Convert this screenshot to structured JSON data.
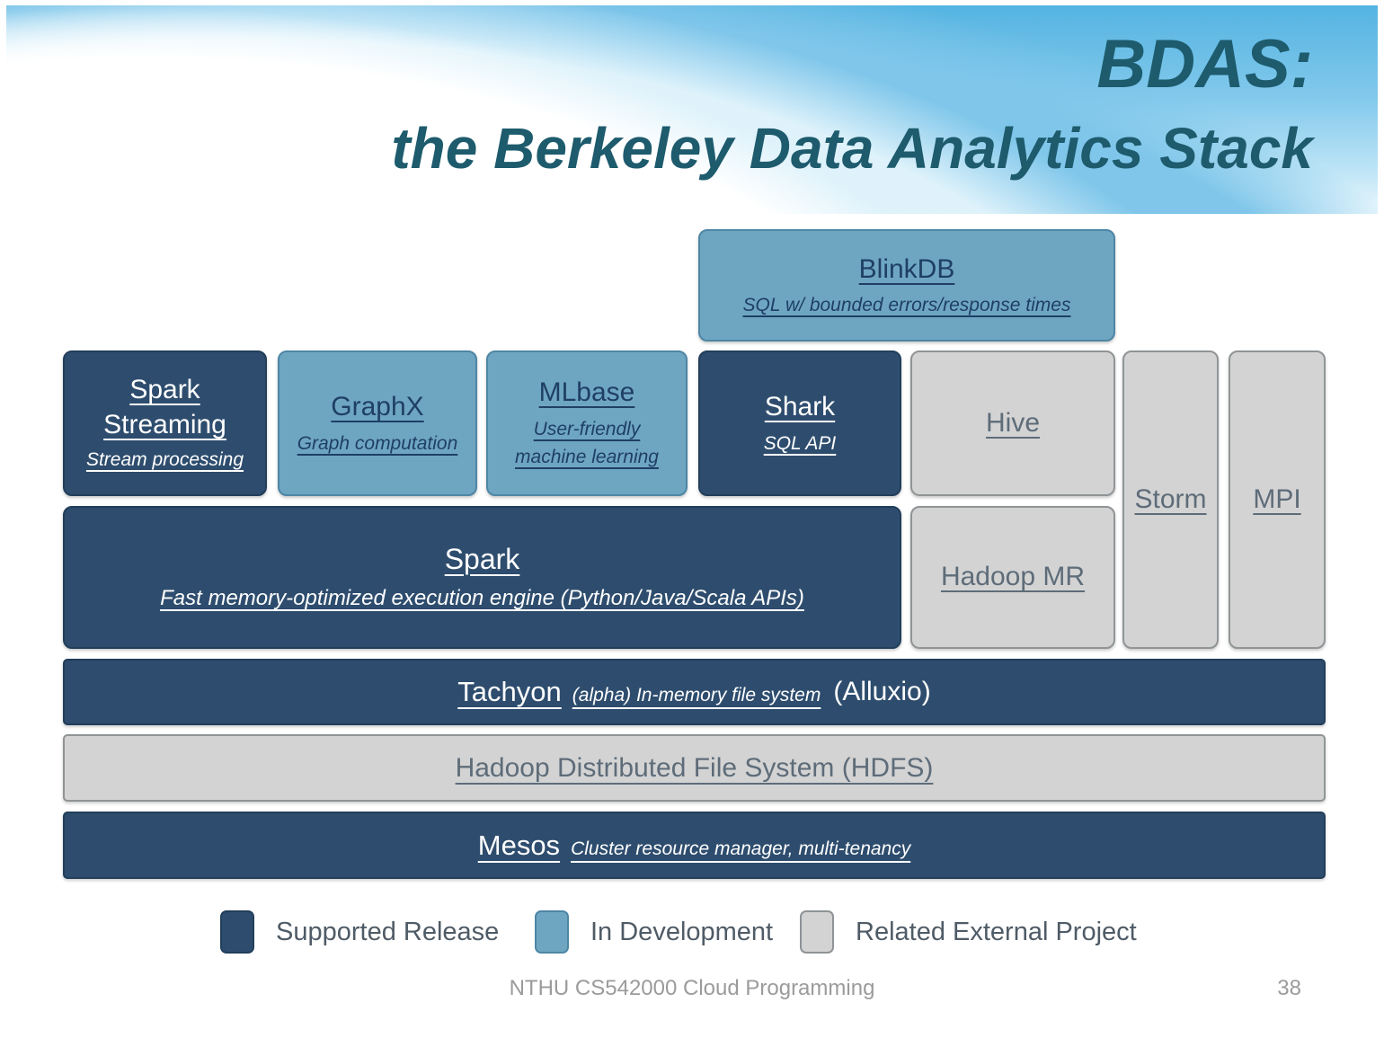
{
  "slide": {
    "title_line1": "BDAS:",
    "title_line2": "the Berkeley Data Analytics Stack",
    "footer_text": "NTHU CS542000 Cloud Programming",
    "page_number": "38"
  },
  "boxes": {
    "blinkdb": {
      "name": "BlinkDB",
      "desc": "SQL w/ bounded errors/response times",
      "status": "in-development"
    },
    "spark_streaming": {
      "name": "Spark Streaming",
      "desc": "Stream processing",
      "status": "supported-release"
    },
    "graphx": {
      "name": "GraphX",
      "desc": "Graph computation",
      "status": "in-development"
    },
    "mlbase": {
      "name": "MLbase",
      "desc": "User-friendly machine learning",
      "status": "in-development"
    },
    "shark": {
      "name": "Shark",
      "desc": "SQL API",
      "status": "supported-release"
    },
    "hive": {
      "name": "Hive",
      "status": "related-external-project"
    },
    "storm": {
      "name": "Storm",
      "status": "related-external-project"
    },
    "mpi": {
      "name": "MPI",
      "status": "related-external-project"
    },
    "spark": {
      "name": "Spark",
      "desc": "Fast memory-optimized execution engine (Python/Java/Scala APIs)",
      "status": "supported-release"
    },
    "hadoop_mr": {
      "name": "Hadoop MR",
      "status": "related-external-project"
    },
    "tachyon": {
      "name": "Tachyon",
      "desc": "(alpha) In-memory file system",
      "suffix": "(Alluxio)",
      "status": "supported-release"
    },
    "hdfs": {
      "name": "Hadoop Distributed File System (HDFS)",
      "status": "related-external-project"
    },
    "mesos": {
      "name": "Mesos",
      "desc": "Cluster resource manager, multi-tenancy",
      "status": "supported-release"
    }
  },
  "legend": {
    "items": [
      {
        "label": "Supported Release",
        "color": "#2e4d6e"
      },
      {
        "label": "In Development",
        "color": "#6ea6c2"
      },
      {
        "label": "Related External Project",
        "color": "#d3d3d3"
      }
    ]
  },
  "colors": {
    "supported_release": "#2e4d6e",
    "in_development": "#6ea6c2",
    "related_external_project": "#d3d3d3",
    "title_teal": "#1d5b6d"
  }
}
